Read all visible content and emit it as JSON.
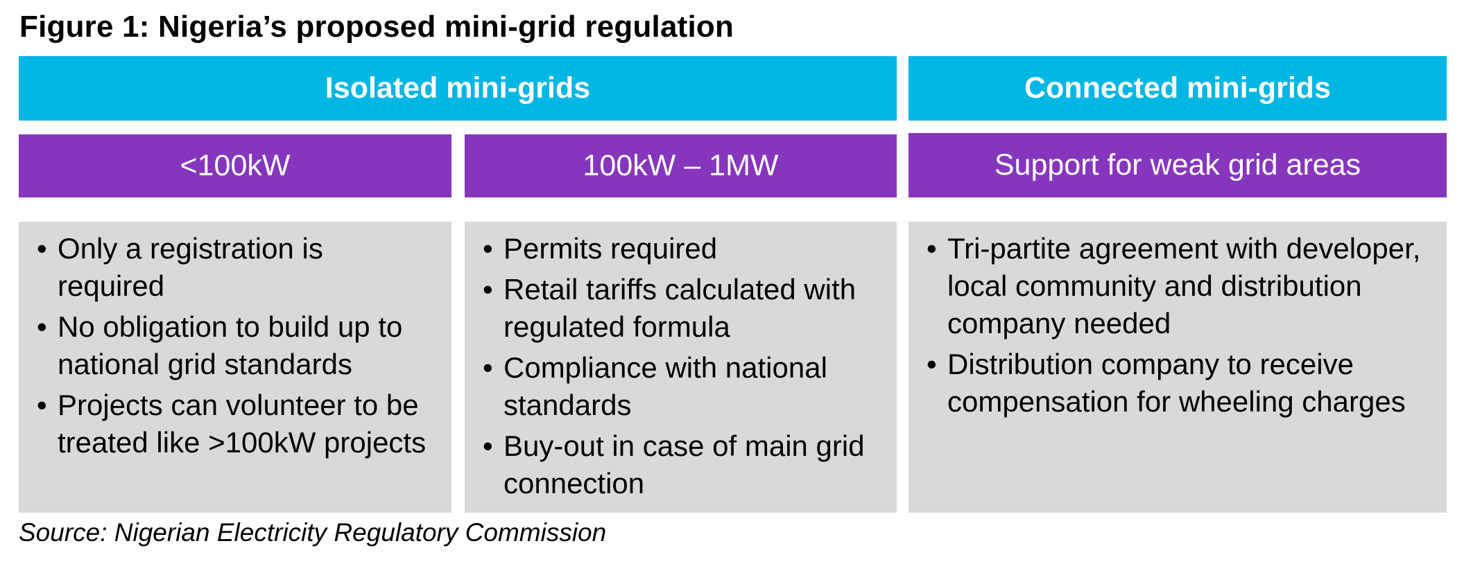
{
  "colors": {
    "cyan": "#00b6e3",
    "purple": "#8636bc",
    "grey": "#d9d9d9"
  },
  "title": "Figure 1: Nigeria’s proposed mini-grid regulation",
  "isolated": {
    "header": "Isolated mini-grids",
    "under_100kw": {
      "header": "<100kW",
      "bullets": [
        [
          "Only a registration is",
          "required"
        ],
        [
          "No obligation to build up to",
          "national grid standards"
        ],
        [
          "Projects can volunteer to be",
          "treated like >100kW projects"
        ]
      ]
    },
    "100kw_1mw": {
      "header": "100kW – 1MW",
      "bullets": [
        [
          "Permits required"
        ],
        [
          "Retail tariffs calculated with",
          "regulated formula"
        ],
        [
          "Compliance with national",
          "standards"
        ],
        [
          "Buy-out in case of main grid",
          "connection"
        ]
      ]
    }
  },
  "connected": {
    "header": "Connected mini-grids",
    "weak_grid": {
      "header": "Support for weak grid areas",
      "bullets": [
        [
          "Tri-partite agreement with developer,",
          "local community and distribution",
          "company needed"
        ],
        [
          "Distribution company to receive",
          "compensation for wheeling charges"
        ]
      ]
    }
  },
  "bullet_glyph": "•",
  "source": "Source: Nigerian Electricity Regulatory Commission"
}
